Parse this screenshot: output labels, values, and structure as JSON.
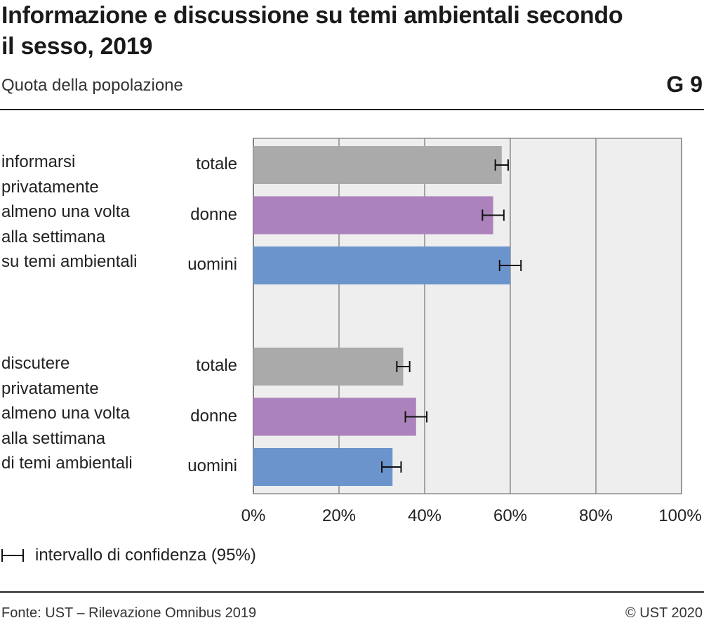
{
  "header": {
    "title": "Informazione e discussione su temi ambientali secondo il sesso, 2019",
    "subtitle": "Quota della popolazione",
    "graphic_number": "G 9"
  },
  "legend": {
    "label": "intervallo di confidenza (95%)"
  },
  "footer": {
    "source": "Fonte: UST – Rilevazione Omnibus 2019",
    "copyright": "© UST 2020"
  },
  "colors": {
    "totale": "#aaaaaa",
    "donne": "#ab82bb",
    "uomini": "#6b94cd",
    "plot_bg": "#eeeeee",
    "grid": "#8c8c8c"
  },
  "chart_data": {
    "type": "bar",
    "orientation": "horizontal",
    "groups": [
      {
        "label": "informarsi\nprivatamente\nalmeno una volta\nalla settimana\nsu temi ambientali",
        "categories": [
          "totale",
          "donne",
          "uomini"
        ],
        "values": [
          58,
          56,
          60
        ],
        "ci_low": [
          56.5,
          53.5,
          57.5
        ],
        "ci_high": [
          59.5,
          58.5,
          62.5
        ]
      },
      {
        "label": "discutere\nprivatamente\nalmeno una volta\nalla settimana\ndi temi ambientali",
        "categories": [
          "totale",
          "donne",
          "uomini"
        ],
        "values": [
          35,
          38,
          32.5
        ],
        "ci_low": [
          33.5,
          35.5,
          30
        ],
        "ci_high": [
          36.5,
          40.5,
          34.5
        ]
      }
    ],
    "x_ticks": [
      "0%",
      "20%",
      "40%",
      "60%",
      "80%",
      "100%"
    ],
    "xlim": [
      0,
      100
    ],
    "grid": true,
    "legend_position": "bottom-left"
  }
}
